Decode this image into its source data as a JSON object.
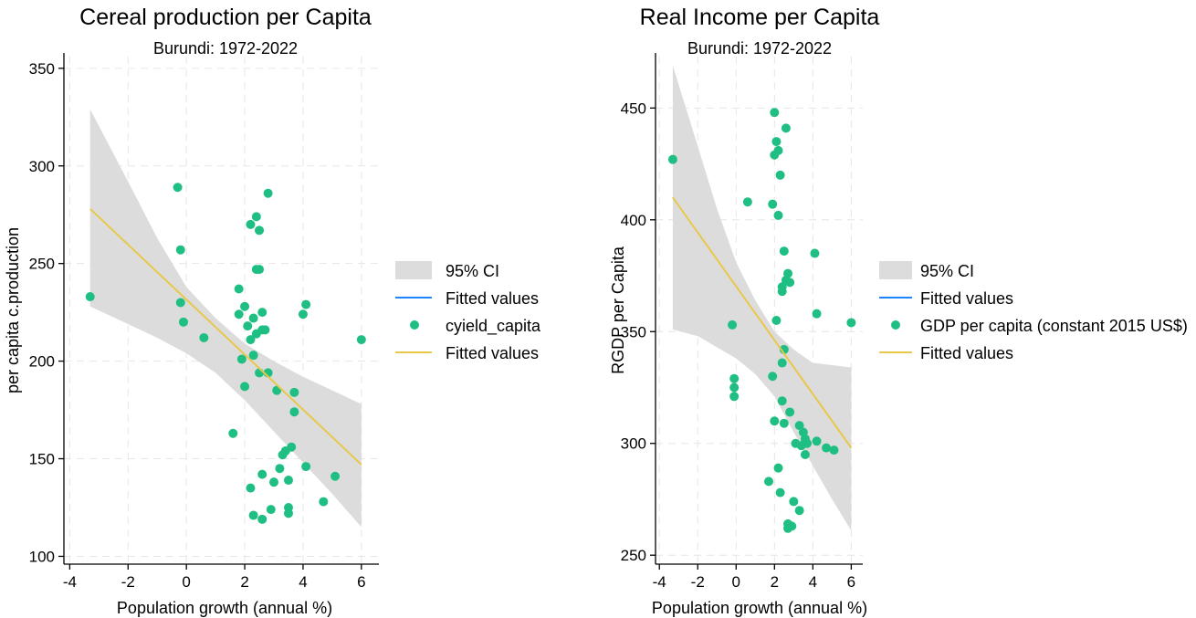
{
  "colors": {
    "ci_band": "#dcdcdc",
    "fit_blue": "#1a85ff",
    "fit_yellow": "#e8c84a",
    "points": "#1fbf84",
    "grid": "#e6e6e6"
  },
  "chart_data": [
    {
      "type": "scatter",
      "title": "Cereal production per Capita",
      "subtitle": "Burundi: 1972-2022",
      "xlabel": "Population growth (annual %)",
      "ylabel": "per capita c.production",
      "xlim": [
        -4.2,
        6.6
      ],
      "ylim": [
        96,
        356
      ],
      "xticks": [
        -4,
        -2,
        0,
        2,
        4,
        6
      ],
      "xtick_labels": [
        "-4",
        "-2",
        "0",
        "2",
        "4",
        "6"
      ],
      "yticks": [
        100,
        150,
        200,
        250,
        300,
        350
      ],
      "ytick_labels": [
        "100",
        "150",
        "200",
        "250",
        "300",
        "350"
      ],
      "grid": true,
      "legend_position": "right",
      "legend": [
        "95% CI",
        "Fitted values",
        "cyield_capita",
        "Fitted values"
      ],
      "fitted_line": {
        "x": [
          -3.3,
          6.0
        ],
        "y": [
          278,
          147
        ]
      },
      "ci_upper": [
        [
          -3.3,
          329
        ],
        [
          -2,
          292
        ],
        [
          -1,
          263
        ],
        [
          0,
          238
        ],
        [
          1,
          222
        ],
        [
          2,
          209
        ],
        [
          3,
          200
        ],
        [
          4,
          192
        ],
        [
          5,
          185
        ],
        [
          6,
          178
        ]
      ],
      "ci_lower": [
        [
          -3.3,
          228
        ],
        [
          -2,
          219
        ],
        [
          -1,
          212
        ],
        [
          0,
          204
        ],
        [
          1,
          194
        ],
        [
          2,
          180
        ],
        [
          3,
          164
        ],
        [
          4,
          148
        ],
        [
          5,
          132
        ],
        [
          6,
          115
        ]
      ],
      "series": [
        {
          "name": "cyield_capita",
          "points": [
            [
              -3.3,
              233
            ],
            [
              -0.3,
              289
            ],
            [
              -0.2,
              257
            ],
            [
              -0.2,
              230
            ],
            [
              -0.1,
              220
            ],
            [
              0.6,
              212
            ],
            [
              1.6,
              163
            ],
            [
              1.8,
              237
            ],
            [
              1.8,
              224
            ],
            [
              1.9,
              201
            ],
            [
              2.0,
              228
            ],
            [
              2.0,
              187
            ],
            [
              2.1,
              218
            ],
            [
              2.2,
              270
            ],
            [
              2.2,
              211
            ],
            [
              2.2,
              135
            ],
            [
              2.3,
              222
            ],
            [
              2.3,
              203
            ],
            [
              2.3,
              121
            ],
            [
              2.4,
              274
            ],
            [
              2.4,
              247
            ],
            [
              2.4,
              214
            ],
            [
              2.5,
              267
            ],
            [
              2.5,
              247
            ],
            [
              2.5,
              194
            ],
            [
              2.6,
              225
            ],
            [
              2.6,
              216
            ],
            [
              2.6,
              142
            ],
            [
              2.6,
              119
            ],
            [
              2.7,
              216
            ],
            [
              2.8,
              286
            ],
            [
              2.8,
              194
            ],
            [
              2.9,
              124
            ],
            [
              3.0,
              138
            ],
            [
              3.1,
              185
            ],
            [
              3.2,
              145
            ],
            [
              3.3,
              152
            ],
            [
              3.4,
              154
            ],
            [
              3.5,
              139
            ],
            [
              3.5,
              125
            ],
            [
              3.5,
              122
            ],
            [
              3.6,
              156
            ],
            [
              3.7,
              174
            ],
            [
              3.7,
              184
            ],
            [
              4.0,
              224
            ],
            [
              4.1,
              146
            ],
            [
              4.1,
              229
            ],
            [
              4.7,
              128
            ],
            [
              5.1,
              141
            ],
            [
              6.0,
              211
            ]
          ]
        }
      ]
    },
    {
      "type": "scatter",
      "title": "Real Income per Capita",
      "subtitle": "Burundi: 1972-2022",
      "xlabel": "Population growth (annual %)",
      "ylabel": "RGDP per Capita",
      "xlim": [
        -4.2,
        6.6
      ],
      "ylim": [
        246,
        473
      ],
      "xticks": [
        -4,
        -2,
        0,
        2,
        4,
        6
      ],
      "xtick_labels": [
        "-4",
        "-2",
        "0",
        "2",
        "4",
        "6"
      ],
      "yticks": [
        250,
        300,
        350,
        400,
        450
      ],
      "ytick_labels": [
        "250",
        "300",
        "350",
        "400",
        "450"
      ],
      "grid": true,
      "legend_position": "right",
      "legend": [
        "95% CI",
        "Fitted values",
        "GDP per capita (constant 2015 US$)",
        "Fitted values"
      ],
      "fitted_line": {
        "x": [
          -3.3,
          6.0
        ],
        "y": [
          410,
          298
        ]
      },
      "ci_upper": [
        [
          -3.3,
          469
        ],
        [
          -2,
          433
        ],
        [
          -1,
          405
        ],
        [
          0,
          381
        ],
        [
          1,
          364
        ],
        [
          2,
          350
        ],
        [
          3,
          342
        ],
        [
          4,
          336
        ],
        [
          5,
          335
        ],
        [
          6,
          334
        ]
      ],
      "ci_lower": [
        [
          -3.3,
          351
        ],
        [
          -2,
          348
        ],
        [
          -1,
          343
        ],
        [
          0,
          338
        ],
        [
          1,
          331
        ],
        [
          2,
          321
        ],
        [
          3,
          305
        ],
        [
          4,
          290
        ],
        [
          5,
          275
        ],
        [
          6,
          261
        ]
      ],
      "series": [
        {
          "name": "GDP per capita (constant 2015 US$)",
          "points": [
            [
              -3.3,
              427
            ],
            [
              0.6,
              408
            ],
            [
              -0.2,
              353
            ],
            [
              -0.1,
              329
            ],
            [
              -0.1,
              325
            ],
            [
              -0.1,
              321
            ],
            [
              1.7,
              283
            ],
            [
              1.9,
              407
            ],
            [
              1.9,
              330
            ],
            [
              2.0,
              448
            ],
            [
              2.0,
              429
            ],
            [
              2.0,
              310
            ],
            [
              2.1,
              435
            ],
            [
              2.1,
              355
            ],
            [
              2.2,
              431
            ],
            [
              2.2,
              402
            ],
            [
              2.2,
              289
            ],
            [
              2.3,
              420
            ],
            [
              2.3,
              278
            ],
            [
              2.4,
              370
            ],
            [
              2.4,
              368
            ],
            [
              2.4,
              336
            ],
            [
              2.4,
              319
            ],
            [
              2.5,
              386
            ],
            [
              2.5,
              342
            ],
            [
              2.5,
              309
            ],
            [
              2.6,
              441
            ],
            [
              2.6,
              373
            ],
            [
              2.7,
              376
            ],
            [
              2.7,
              264
            ],
            [
              2.7,
              262
            ],
            [
              2.8,
              372
            ],
            [
              2.8,
              314
            ],
            [
              2.9,
              263
            ],
            [
              3.0,
              274
            ],
            [
              3.1,
              300
            ],
            [
              3.3,
              270
            ],
            [
              3.3,
              308
            ],
            [
              3.4,
              299
            ],
            [
              3.5,
              305
            ],
            [
              3.6,
              302
            ],
            [
              3.6,
              295
            ],
            [
              3.7,
              300
            ],
            [
              4.1,
              385
            ],
            [
              4.2,
              358
            ],
            [
              4.2,
              301
            ],
            [
              4.7,
              298
            ],
            [
              5.1,
              297
            ],
            [
              6.0,
              354
            ]
          ]
        }
      ]
    }
  ]
}
